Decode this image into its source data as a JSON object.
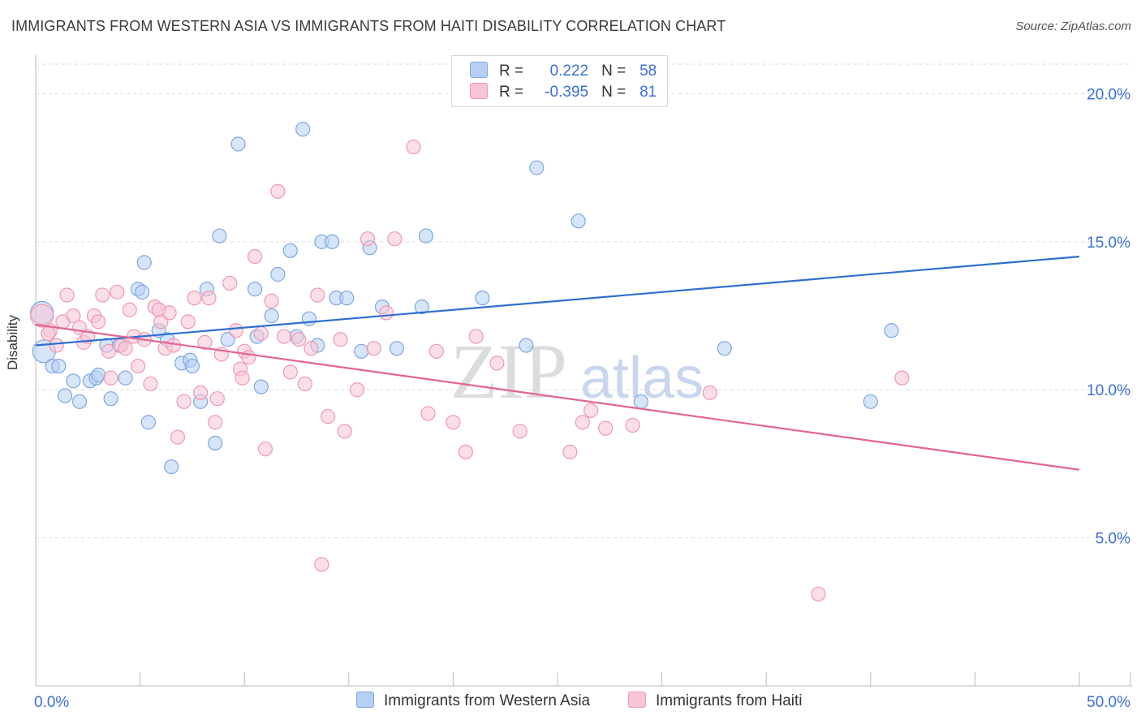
{
  "title": "IMMIGRANTS FROM WESTERN ASIA VS IMMIGRANTS FROM HAITI DISABILITY CORRELATION CHART",
  "source": "Source: ZipAtlas.com",
  "watermark": {
    "zip": "ZIP",
    "atlas": "atlas"
  },
  "legend": {
    "rows": [
      {
        "r_label": "R =",
        "r_value": "0.222",
        "n_label": "N =",
        "n_value": "58"
      },
      {
        "r_label": "R =",
        "r_value": "-0.395",
        "n_label": "N =",
        "n_value": "81"
      }
    ]
  },
  "bottom_legend": [
    "Immigrants from Western Asia",
    "Immigrants from Haiti"
  ],
  "colors": {
    "blue_fill": "#b7cff3",
    "blue_stroke": "#7ea6e4",
    "blue_line": "#2f6fcf",
    "pink_fill": "#f8c5d4",
    "pink_stroke": "#ef98b3",
    "pink_line": "#e26592",
    "tick_text": "#3a6fd8",
    "grid": "#dddddd"
  },
  "chart_data": {
    "type": "scatter",
    "title": "IMMIGRANTS FROM WESTERN ASIA VS IMMIGRANTS FROM HAITI DISABILITY CORRELATION CHART",
    "xlabel": "",
    "ylabel": "Disability",
    "xlim": [
      0,
      50
    ],
    "ylim": [
      0,
      21
    ],
    "x_tick_labels": [
      "0.0%",
      "50.0%"
    ],
    "y_ticks": [
      5,
      10,
      15,
      20
    ],
    "y_tick_labels": [
      "5.0%",
      "10.0%",
      "15.0%",
      "20.0%"
    ],
    "grid": "horizontal dashed",
    "legend_placement": "top-center",
    "series": [
      {
        "name": "Immigrants from Western Asia",
        "trend": {
          "x": [
            0,
            50
          ],
          "y": [
            11.5,
            14.5
          ]
        },
        "points": [
          [
            0.3,
            12.6
          ],
          [
            0.4,
            11.3
          ],
          [
            0.8,
            10.8
          ],
          [
            1.1,
            10.8
          ],
          [
            1.4,
            9.8
          ],
          [
            1.8,
            10.3
          ],
          [
            2.1,
            9.6
          ],
          [
            2.6,
            10.3
          ],
          [
            2.9,
            10.4
          ],
          [
            3.0,
            10.5
          ],
          [
            3.4,
            11.5
          ],
          [
            3.6,
            9.7
          ],
          [
            4.0,
            11.5
          ],
          [
            4.3,
            10.4
          ],
          [
            4.9,
            13.4
          ],
          [
            5.1,
            13.3
          ],
          [
            5.2,
            14.3
          ],
          [
            5.4,
            8.9
          ],
          [
            5.9,
            12.0
          ],
          [
            6.3,
            11.7
          ],
          [
            6.5,
            7.4
          ],
          [
            7.0,
            10.9
          ],
          [
            7.4,
            11.0
          ],
          [
            7.5,
            10.8
          ],
          [
            7.9,
            9.6
          ],
          [
            8.2,
            13.4
          ],
          [
            8.6,
            8.2
          ],
          [
            8.8,
            15.2
          ],
          [
            9.2,
            11.7
          ],
          [
            9.7,
            18.3
          ],
          [
            10.5,
            13.4
          ],
          [
            10.6,
            11.8
          ],
          [
            10.8,
            10.1
          ],
          [
            11.3,
            12.5
          ],
          [
            11.6,
            13.9
          ],
          [
            12.2,
            14.7
          ],
          [
            12.5,
            11.8
          ],
          [
            12.8,
            18.8
          ],
          [
            13.1,
            12.4
          ],
          [
            13.5,
            11.5
          ],
          [
            13.7,
            15.0
          ],
          [
            14.2,
            15.0
          ],
          [
            14.4,
            13.1
          ],
          [
            14.9,
            13.1
          ],
          [
            15.6,
            11.3
          ],
          [
            16.0,
            14.8
          ],
          [
            16.6,
            12.8
          ],
          [
            17.3,
            11.4
          ],
          [
            18.5,
            12.8
          ],
          [
            18.7,
            15.2
          ],
          [
            21.4,
            13.1
          ],
          [
            23.5,
            11.5
          ],
          [
            24.0,
            17.5
          ],
          [
            26.0,
            15.7
          ],
          [
            29.0,
            9.6
          ],
          [
            33.0,
            11.4
          ],
          [
            40.0,
            9.6
          ],
          [
            41.0,
            12.0
          ]
        ]
      },
      {
        "name": "Immigrants from Haiti",
        "trend": {
          "x": [
            0,
            50
          ],
          "y": [
            12.2,
            7.3
          ]
        },
        "points": [
          [
            0.3,
            12.5
          ],
          [
            0.7,
            12.0
          ],
          [
            1.0,
            11.5
          ],
          [
            1.3,
            12.3
          ],
          [
            1.5,
            13.2
          ],
          [
            1.8,
            12.5
          ],
          [
            2.1,
            12.1
          ],
          [
            2.3,
            11.6
          ],
          [
            2.5,
            11.8
          ],
          [
            2.8,
            12.5
          ],
          [
            3.0,
            12.3
          ],
          [
            3.2,
            13.2
          ],
          [
            3.6,
            10.4
          ],
          [
            3.9,
            13.3
          ],
          [
            4.1,
            11.5
          ],
          [
            4.3,
            11.4
          ],
          [
            4.5,
            12.7
          ],
          [
            4.7,
            11.8
          ],
          [
            4.9,
            10.8
          ],
          [
            5.2,
            11.7
          ],
          [
            5.5,
            10.2
          ],
          [
            5.7,
            12.8
          ],
          [
            5.9,
            12.7
          ],
          [
            6.0,
            12.3
          ],
          [
            6.2,
            11.4
          ],
          [
            6.4,
            12.6
          ],
          [
            6.6,
            11.5
          ],
          [
            6.8,
            8.4
          ],
          [
            7.1,
            9.6
          ],
          [
            7.3,
            12.3
          ],
          [
            7.6,
            13.1
          ],
          [
            7.9,
            9.9
          ],
          [
            8.1,
            11.6
          ],
          [
            8.3,
            13.1
          ],
          [
            8.6,
            8.9
          ],
          [
            8.7,
            9.7
          ],
          [
            8.9,
            11.2
          ],
          [
            9.3,
            13.6
          ],
          [
            9.6,
            12.0
          ],
          [
            9.8,
            10.7
          ],
          [
            10.0,
            11.3
          ],
          [
            10.2,
            11.1
          ],
          [
            10.5,
            14.5
          ],
          [
            10.8,
            11.9
          ],
          [
            11.0,
            8.0
          ],
          [
            11.3,
            13.0
          ],
          [
            11.6,
            16.7
          ],
          [
            11.9,
            11.8
          ],
          [
            12.2,
            10.6
          ],
          [
            12.6,
            11.7
          ],
          [
            12.9,
            10.2
          ],
          [
            13.2,
            11.4
          ],
          [
            13.5,
            13.2
          ],
          [
            13.7,
            4.1
          ],
          [
            14.0,
            9.1
          ],
          [
            14.6,
            11.7
          ],
          [
            14.8,
            8.6
          ],
          [
            15.4,
            10.0
          ],
          [
            15.9,
            15.1
          ],
          [
            16.2,
            11.4
          ],
          [
            16.8,
            12.6
          ],
          [
            17.2,
            15.1
          ],
          [
            18.1,
            18.2
          ],
          [
            18.8,
            9.2
          ],
          [
            19.2,
            11.3
          ],
          [
            20.0,
            8.9
          ],
          [
            20.6,
            7.9
          ],
          [
            21.1,
            11.8
          ],
          [
            22.1,
            10.9
          ],
          [
            23.2,
            8.6
          ],
          [
            25.6,
            7.9
          ],
          [
            26.2,
            8.9
          ],
          [
            26.6,
            9.3
          ],
          [
            27.3,
            8.7
          ],
          [
            28.6,
            8.8
          ],
          [
            32.3,
            9.9
          ],
          [
            37.5,
            3.1
          ],
          [
            41.5,
            10.4
          ],
          [
            0.6,
            11.9
          ],
          [
            9.9,
            10.4
          ],
          [
            3.5,
            11.3
          ]
        ]
      }
    ]
  }
}
